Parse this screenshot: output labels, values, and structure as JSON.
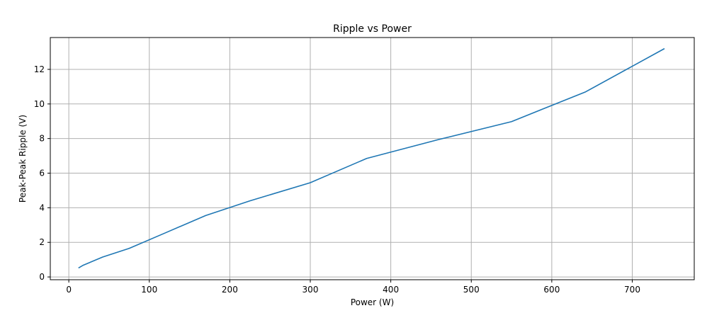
{
  "chart_data": {
    "type": "line",
    "title": "Ripple vs Power",
    "xlabel": "Power (W)",
    "ylabel": "Peak-Peak Ripple (V)",
    "xlim": [
      -23,
      777
    ],
    "ylim": [
      -0.16,
      13.84
    ],
    "xticks": [
      0,
      100,
      200,
      300,
      400,
      500,
      600,
      700
    ],
    "yticks": [
      0,
      2,
      4,
      6,
      8,
      10,
      12
    ],
    "grid": true,
    "series": [
      {
        "color": "#1f77b4",
        "x": [
          12,
          18,
          42,
          75,
          120,
          170,
          225,
          300,
          370,
          460,
          550,
          642,
          740
        ],
        "y": [
          0.52,
          0.68,
          1.15,
          1.65,
          2.55,
          3.55,
          4.4,
          5.45,
          6.85,
          7.95,
          8.98,
          10.7,
          13.2
        ]
      }
    ]
  }
}
